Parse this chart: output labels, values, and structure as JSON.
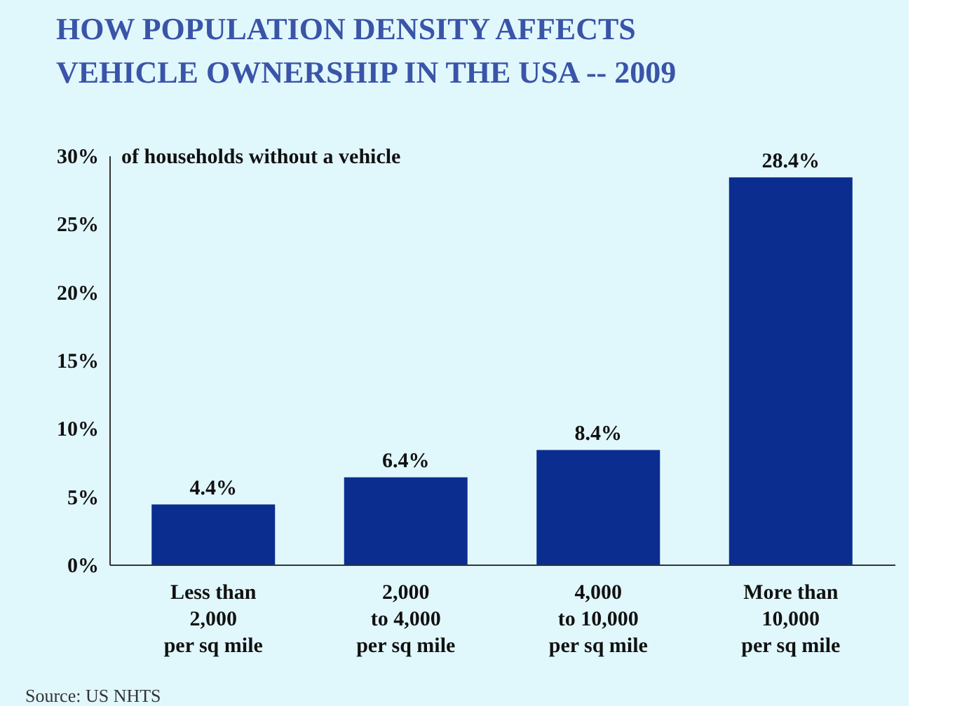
{
  "chart_data": {
    "type": "bar",
    "title": [
      "HOW POPULATION DENSITY AFFECTS",
      "VEHICLE OWNERSHIP IN THE USA -- 2009"
    ],
    "ylabel": "of households without a vehicle",
    "categories": [
      "Less than\n2,000\nper sq mile",
      "2,000\nto 4,000\nper sq mile",
      "4,000\nto 10,000\nper sq mile",
      "More than\n10,000\nper sq mile"
    ],
    "values": [
      4.4,
      6.4,
      8.4,
      28.4
    ],
    "value_labels": [
      "4.4%",
      "6.4%",
      "8.4%",
      "28.4%"
    ],
    "color": "#0b2d8f",
    "ylim": [
      0,
      30
    ],
    "yticks": [
      {
        "value": 0,
        "label": "0%"
      },
      {
        "value": 5,
        "label": "5%"
      },
      {
        "value": 10,
        "label": "10%"
      },
      {
        "value": 15,
        "label": "15%"
      },
      {
        "value": 20,
        "label": "20%"
      },
      {
        "value": 25,
        "label": "25%"
      },
      {
        "value": 30,
        "label": "30%"
      }
    ],
    "grid": false,
    "annotations": [
      "Source: US NHTS"
    ]
  }
}
